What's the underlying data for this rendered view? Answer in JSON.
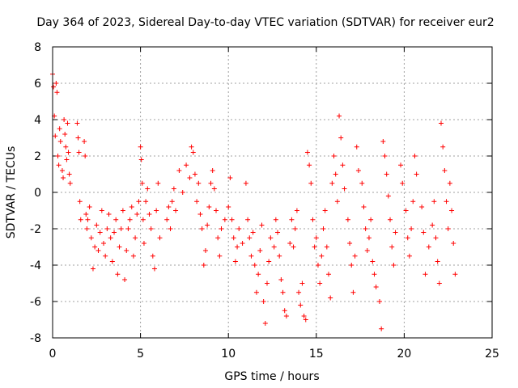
{
  "chart_data": {
    "type": "scatter",
    "title": "Day 364 of 2023, Sidereal Day-to-day VTEC variation (SDTVAR) for receiver eur2",
    "xlabel": "GPS time / hours",
    "ylabel": "SDTVAR / TECUs",
    "xlim": [
      0,
      25
    ],
    "ylim": [
      -8,
      8
    ],
    "xticks": [
      0,
      5,
      10,
      15,
      20,
      25
    ],
    "yticks": [
      -8,
      -6,
      -4,
      -2,
      0,
      2,
      4,
      6,
      8
    ],
    "grid": true,
    "marker": "+",
    "series": [
      {
        "name": "eur2",
        "color": "#ff0000",
        "x": [
          0.0,
          0.05,
          0.1,
          0.15,
          0.2,
          0.25,
          0.3,
          0.35,
          0.4,
          0.45,
          0.55,
          0.6,
          0.65,
          0.7,
          0.75,
          0.8,
          0.85,
          0.9,
          0.95,
          1.0,
          1.4,
          1.45,
          1.5,
          1.55,
          1.6,
          1.8,
          1.85,
          1.9,
          1.95,
          2.0,
          2.1,
          2.2,
          2.3,
          2.4,
          2.5,
          2.6,
          2.7,
          2.8,
          2.9,
          3.0,
          3.1,
          3.2,
          3.3,
          3.4,
          3.5,
          3.6,
          3.7,
          3.8,
          3.9,
          4.0,
          4.1,
          4.2,
          4.3,
          4.4,
          4.5,
          4.6,
          4.7,
          4.8,
          4.9,
          5.0,
          5.05,
          5.1,
          5.15,
          5.2,
          5.3,
          5.4,
          5.5,
          5.6,
          5.7,
          5.8,
          5.9,
          6.0,
          6.1,
          6.5,
          6.6,
          6.7,
          6.8,
          6.9,
          7.0,
          7.2,
          7.4,
          7.6,
          7.8,
          7.9,
          8.0,
          8.1,
          8.2,
          8.3,
          8.4,
          8.5,
          8.6,
          8.7,
          8.8,
          8.9,
          9.0,
          9.1,
          9.2,
          9.3,
          9.4,
          9.5,
          9.6,
          9.8,
          10.0,
          10.1,
          10.2,
          10.3,
          10.4,
          10.5,
          10.6,
          10.8,
          11.0,
          11.1,
          11.2,
          11.3,
          11.4,
          11.5,
          11.6,
          11.7,
          11.8,
          11.9,
          12.0,
          12.1,
          12.2,
          12.3,
          12.4,
          12.6,
          12.7,
          12.8,
          12.9,
          13.0,
          13.1,
          13.2,
          13.3,
          13.5,
          13.6,
          13.7,
          13.8,
          13.9,
          14.0,
          14.1,
          14.2,
          14.3,
          14.4,
          14.5,
          14.6,
          14.7,
          14.8,
          14.9,
          15.0,
          15.1,
          15.2,
          15.3,
          15.4,
          15.5,
          15.6,
          15.7,
          15.8,
          15.9,
          16.0,
          16.1,
          16.2,
          16.3,
          16.4,
          16.5,
          16.6,
          16.8,
          16.9,
          17.0,
          17.1,
          17.2,
          17.3,
          17.4,
          17.6,
          17.7,
          17.8,
          17.9,
          18.0,
          18.1,
          18.2,
          18.3,
          18.4,
          18.6,
          18.7,
          18.8,
          18.9,
          19.0,
          19.1,
          19.2,
          19.3,
          19.4,
          19.5,
          19.8,
          19.9,
          20.1,
          20.2,
          20.3,
          20.4,
          20.5,
          20.6,
          20.7,
          21.0,
          21.1,
          21.2,
          21.4,
          21.6,
          21.7,
          21.8,
          21.9,
          22.0,
          22.1,
          22.2,
          22.3,
          22.4,
          22.5,
          22.6,
          22.7,
          22.8,
          22.9
        ],
        "y": [
          6.5,
          5.8,
          4.2,
          3.1,
          6.0,
          5.5,
          2.0,
          1.5,
          3.5,
          2.8,
          1.2,
          0.8,
          4.0,
          3.2,
          2.5,
          1.8,
          3.8,
          2.2,
          1.0,
          0.5,
          3.8,
          3.0,
          2.2,
          -0.5,
          -1.5,
          2.8,
          2.0,
          -1.2,
          -2.0,
          -1.5,
          -0.8,
          -2.5,
          -4.2,
          -3.0,
          -1.8,
          -3.2,
          -2.2,
          -1.0,
          -2.8,
          -3.5,
          -2.0,
          -1.2,
          -2.5,
          -3.8,
          -2.2,
          -1.5,
          -4.5,
          -3.0,
          -2.0,
          -1.0,
          -4.8,
          -3.2,
          -2.0,
          -1.5,
          -0.8,
          -3.5,
          -2.5,
          -1.2,
          -0.5,
          2.5,
          1.8,
          0.5,
          -1.5,
          -2.8,
          -0.5,
          0.2,
          -1.2,
          -2.0,
          -3.5,
          -4.2,
          -1.0,
          0.5,
          -2.5,
          -1.5,
          -0.8,
          -2.0,
          -0.5,
          0.2,
          -1.0,
          1.2,
          0.0,
          1.5,
          0.8,
          2.5,
          2.2,
          1.0,
          -0.5,
          0.5,
          -1.2,
          -2.0,
          -4.0,
          -3.2,
          -1.8,
          -0.8,
          0.5,
          1.2,
          0.2,
          -1.0,
          -2.5,
          -3.5,
          -2.0,
          -1.5,
          -0.8,
          0.8,
          -1.5,
          -2.5,
          -3.8,
          -3.0,
          -2.0,
          -2.8,
          0.5,
          -1.5,
          -2.5,
          -3.5,
          -2.2,
          -4.0,
          -5.5,
          -4.5,
          -3.2,
          -1.8,
          -6.0,
          -7.2,
          -5.0,
          -3.8,
          -2.5,
          -3.0,
          -1.5,
          -2.2,
          -3.5,
          -4.8,
          -5.5,
          -6.5,
          -6.8,
          -2.8,
          -1.5,
          -3.0,
          -2.0,
          -1.0,
          -5.5,
          -6.2,
          -5.0,
          -6.8,
          -7.0,
          2.2,
          1.5,
          0.5,
          -1.5,
          -3.0,
          -2.5,
          -4.0,
          -5.0,
          -3.5,
          -2.0,
          -1.0,
          -3.0,
          -4.5,
          -5.8,
          0.5,
          2.0,
          1.0,
          -0.5,
          4.2,
          3.0,
          1.5,
          0.2,
          -1.5,
          -2.8,
          -4.0,
          -5.5,
          -3.5,
          2.5,
          1.2,
          0.5,
          -0.8,
          -2.0,
          -3.2,
          -2.5,
          -1.5,
          -3.8,
          -4.5,
          -5.2,
          -6.0,
          -7.5,
          2.8,
          2.0,
          1.0,
          -0.2,
          -1.5,
          -3.0,
          -4.0,
          -2.2,
          1.5,
          0.5,
          -1.0,
          -2.5,
          -3.5,
          -2.0,
          -0.5,
          2.0,
          1.0,
          -0.8,
          -2.2,
          -4.5,
          -3.0,
          -1.8,
          -0.5,
          -2.5,
          -3.8,
          -5.0,
          3.8,
          2.5,
          1.2,
          -0.5,
          -2.0,
          0.5,
          -1.0,
          -2.8,
          -4.5
        ]
      }
    ]
  }
}
